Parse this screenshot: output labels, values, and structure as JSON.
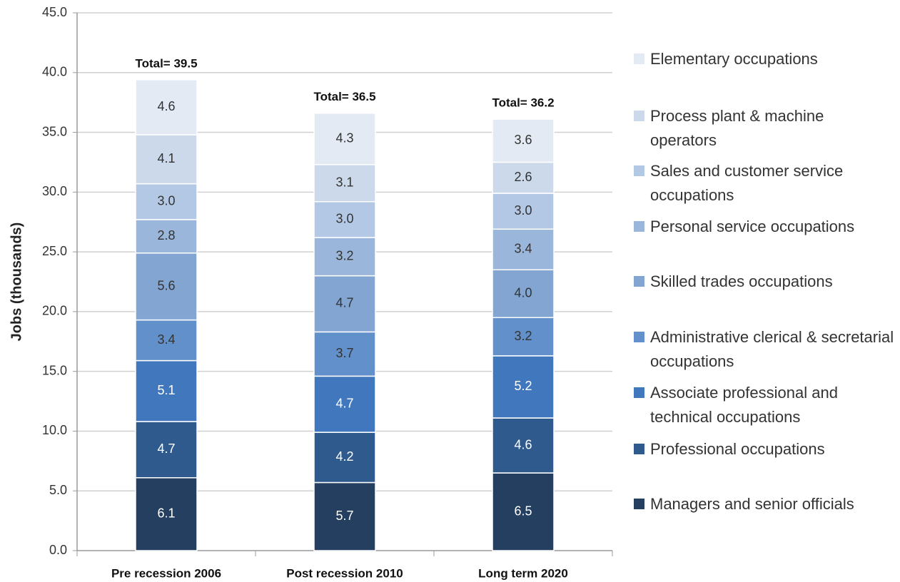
{
  "chart_data": {
    "type": "stacked_bar",
    "y_axis_label": "Jobs (thousands)",
    "categories": [
      "Pre recession 2006",
      "Post recession 2010",
      "Long term 2020"
    ],
    "totals_labels": [
      "Total= 39.5",
      "Total= 36.5",
      "Total= 36.2"
    ],
    "ylim": [
      0,
      45
    ],
    "yticks": [
      {
        "value": 0,
        "label": "0.0"
      },
      {
        "value": 5,
        "label": "5.0"
      },
      {
        "value": 10,
        "label": "10.0"
      },
      {
        "value": 15,
        "label": "15.0"
      },
      {
        "value": 20,
        "label": "20.0"
      },
      {
        "value": 25,
        "label": "25.0"
      },
      {
        "value": 30,
        "label": "30.0"
      },
      {
        "value": 35,
        "label": "35.0"
      },
      {
        "value": 40,
        "label": "40.0"
      },
      {
        "value": 45,
        "label": "45.0"
      }
    ],
    "grid": true,
    "legend": "right",
    "series": [
      {
        "name": "Managers and senior officials",
        "color": "#243f60",
        "values": [
          6.1,
          5.7,
          6.5
        ],
        "value_labels": [
          "6.1",
          "5.7",
          "6.5"
        ]
      },
      {
        "name": "Professional occupations",
        "color": "#2f5a8e",
        "values": [
          4.7,
          4.2,
          4.6
        ],
        "value_labels": [
          "4.7",
          "4.2",
          "4.6"
        ]
      },
      {
        "name": "Associate professional and technical occupations",
        "color": "#4178bd",
        "values": [
          5.1,
          4.7,
          5.2
        ],
        "value_labels": [
          "5.1",
          "4.7",
          "5.2"
        ]
      },
      {
        "name": "Administrative clerical & secretarial occupations",
        "color": "#6190ca",
        "values": [
          3.4,
          3.7,
          3.2
        ],
        "value_labels": [
          "3.4",
          "3.7",
          "3.2"
        ]
      },
      {
        "name": "Skilled trades occupations",
        "color": "#82a5d2",
        "values": [
          5.6,
          4.7,
          4.0
        ],
        "value_labels": [
          "5.6",
          "4.7",
          "4.0"
        ]
      },
      {
        "name": "Personal service occupations",
        "color": "#9ab6da",
        "values": [
          2.8,
          3.2,
          3.4
        ],
        "value_labels": [
          "2.8",
          "3.2",
          "3.4"
        ]
      },
      {
        "name": "Sales and customer service occupations",
        "color": "#b3c8e4",
        "values": [
          3.0,
          3.0,
          3.0
        ],
        "value_labels": [
          "3.0",
          "3.0",
          "3.0"
        ]
      },
      {
        "name": "Process plant & machine operators",
        "color": "#cbd9eb",
        "values": [
          4.1,
          3.1,
          2.6
        ],
        "value_labels": [
          "4.1",
          "3.1",
          "2.6"
        ]
      },
      {
        "name": "Elementary occupations",
        "color": "#e3eaf4",
        "values": [
          4.6,
          4.3,
          3.6
        ],
        "value_labels": [
          "4.6",
          "4.3",
          "3.6"
        ]
      }
    ]
  }
}
